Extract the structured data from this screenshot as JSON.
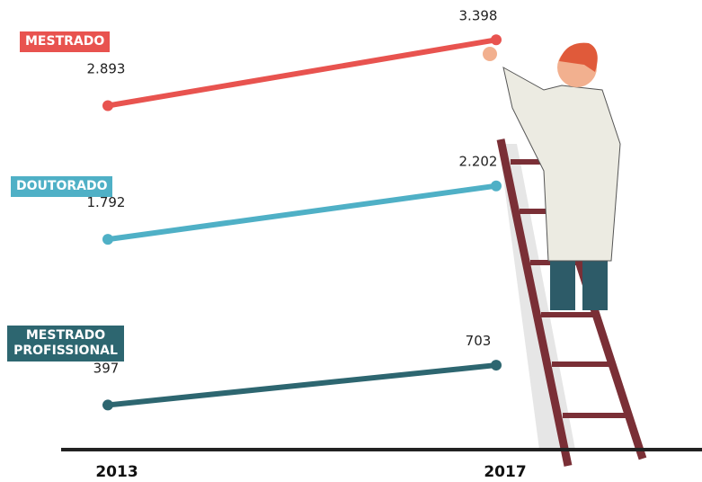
{
  "chart_data": {
    "type": "line",
    "categories": [
      "2013",
      "2017"
    ],
    "series": [
      {
        "name": "MESTRADO",
        "color": "#e8534f",
        "values": [
          2893,
          3398
        ],
        "value_labels": [
          "2.893",
          "3.398"
        ]
      },
      {
        "name": "DOUTORADO",
        "color": "#4fb0c6",
        "values": [
          1792,
          2202
        ],
        "value_labels": [
          "1.792",
          "2.202"
        ]
      },
      {
        "name": "MESTRADO PROFISSIONAL",
        "color": "#2d6670",
        "values": [
          397,
          703
        ],
        "value_labels": [
          "397",
          "703"
        ]
      }
    ]
  }
}
